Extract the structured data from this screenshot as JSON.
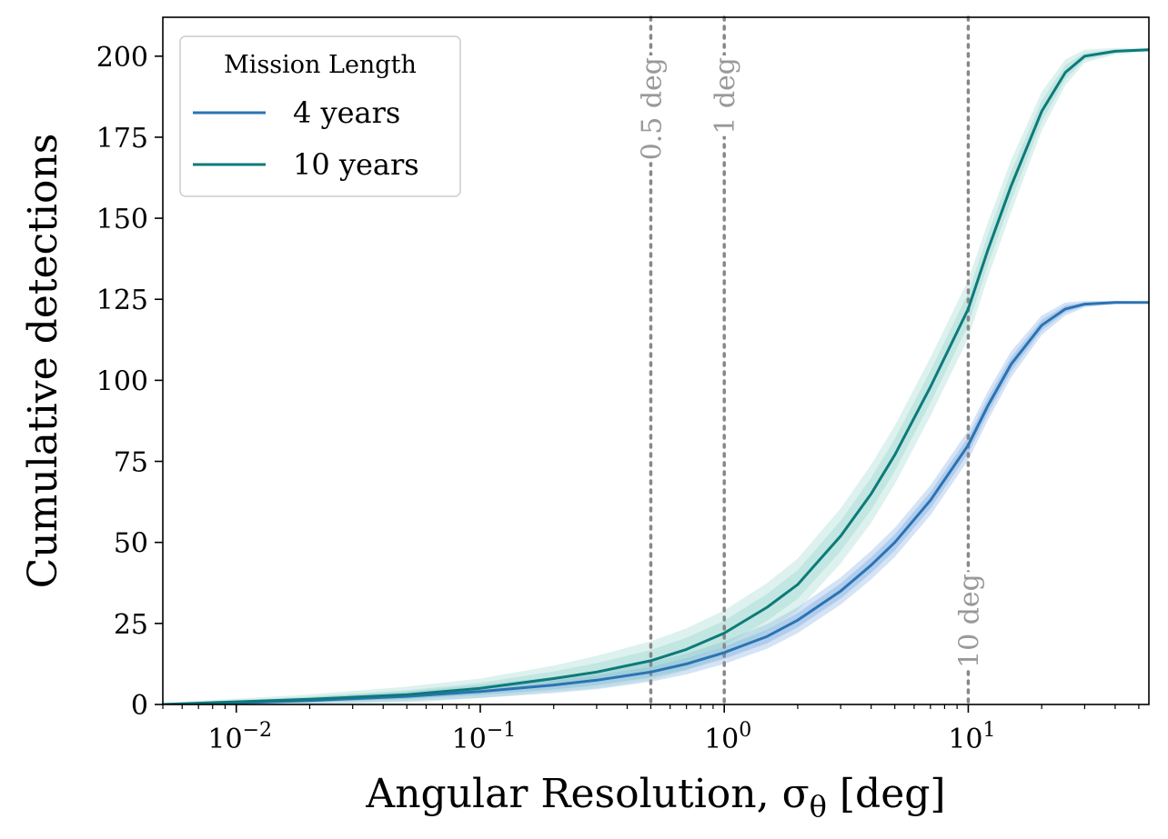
{
  "chart_data": {
    "type": "line",
    "xlabel": "Angular Resolution, σ",
    "xlabel_sub": "θ",
    "xlabel_unit": " [deg]",
    "ylabel": "Cumulative detections",
    "x_scale": "log",
    "xlim": [
      0.005,
      55
    ],
    "ylim": [
      0,
      212
    ],
    "grid": false,
    "x_ticks": [
      {
        "value": 0.01,
        "base": "10",
        "exp": "−2"
      },
      {
        "value": 0.1,
        "base": "10",
        "exp": "−1"
      },
      {
        "value": 1,
        "base": "10",
        "exp": "0"
      },
      {
        "value": 10,
        "base": "10",
        "exp": "1"
      }
    ],
    "y_ticks": [
      0,
      25,
      50,
      75,
      100,
      125,
      150,
      175,
      200
    ],
    "legend": {
      "title": "Mission Length",
      "placement": "top-left"
    },
    "series": [
      {
        "name": "4 years",
        "color": "#2b73b3",
        "band_color": "#6fa3df",
        "x": [
          0.005,
          0.01,
          0.02,
          0.05,
          0.1,
          0.2,
          0.3,
          0.5,
          0.7,
          1,
          1.5,
          2,
          3,
          4,
          5,
          7,
          10,
          12,
          15,
          20,
          25,
          30,
          40,
          55
        ],
        "values": [
          0,
          0.5,
          1.2,
          2.5,
          4,
          6,
          7.5,
          10,
          12.5,
          16,
          21,
          26,
          35,
          43,
          50,
          63,
          80,
          92,
          105,
          117,
          122,
          123.5,
          124,
          124
        ],
        "band_halfwidth": [
          0.3,
          0.6,
          1,
          1.5,
          2,
          2.5,
          2.8,
          3,
          3.2,
          3.5,
          3.8,
          4,
          4.2,
          4.4,
          4.5,
          4.6,
          4.6,
          4.5,
          4,
          3,
          2,
          1,
          0.5,
          0.3
        ]
      },
      {
        "name": "10 years",
        "color": "#0d7a7a",
        "band_color": "#8fd0c8",
        "x": [
          0.005,
          0.01,
          0.02,
          0.05,
          0.1,
          0.2,
          0.3,
          0.5,
          0.7,
          1,
          1.5,
          2,
          3,
          4,
          5,
          7,
          10,
          12,
          15,
          20,
          25,
          30,
          40,
          55
        ],
        "values": [
          0,
          0.8,
          1.6,
          3,
          5,
          8,
          10,
          13.5,
          17,
          22,
          30,
          37,
          52,
          65,
          77,
          98,
          122,
          140,
          160,
          183,
          195,
          200,
          201.5,
          202
        ],
        "band_halfwidth": [
          0.5,
          1,
          1.5,
          2.5,
          3,
          4,
          5,
          6,
          6.5,
          7,
          7.5,
          8,
          8.5,
          9,
          9,
          9,
          9,
          8.5,
          8,
          6,
          4,
          2,
          1,
          0.5
        ]
      }
    ],
    "vlines": [
      {
        "x": 0.5,
        "label": "0.5 deg",
        "label_position": "top",
        "color": "#888888"
      },
      {
        "x": 1,
        "label": "1 deg",
        "label_position": "top",
        "color": "#888888"
      },
      {
        "x": 10,
        "label": "10 deg",
        "label_position": "bottom",
        "color": "#888888"
      }
    ]
  }
}
